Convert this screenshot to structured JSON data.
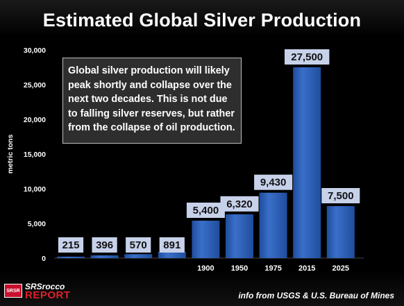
{
  "title": "Estimated Global Silver Production",
  "callout": "Global silver production will likely peak shortly and collapse over the next two decades.  This is not due to falling silver reserves, but rather from the collapse of oil production.",
  "source": "info from USGS & U.S. Bureau of Mines",
  "logo": {
    "badge": "SRSR",
    "top": "SRSrocco",
    "bottom": "REPORT"
  },
  "colors": {
    "bar": "#3a6fc9",
    "bar_dark": "#1f4d9c",
    "label_box": "#c7d2ea",
    "label_text": "#111111",
    "axis_text": "#ffffff"
  },
  "chart_data": {
    "type": "bar",
    "title": "Estimated Global Silver Production",
    "xlabel": "",
    "ylabel": "metric tons",
    "ylim": [
      0,
      30000
    ],
    "yticks": [
      "0",
      "5,000",
      "10,000",
      "15,000",
      "20,000",
      "25,000",
      "30,000"
    ],
    "grid": false,
    "categories": [
      "",
      "",
      "",
      "",
      "1900",
      "1950",
      "1975",
      "2015",
      "2025"
    ],
    "values": [
      215,
      396,
      570,
      891,
      5400,
      6320,
      9430,
      27500,
      7500
    ],
    "data_labels": [
      "215",
      "396",
      "570",
      "891",
      "5,400",
      "6,320",
      "9,430",
      "27,500",
      "7,500"
    ]
  }
}
